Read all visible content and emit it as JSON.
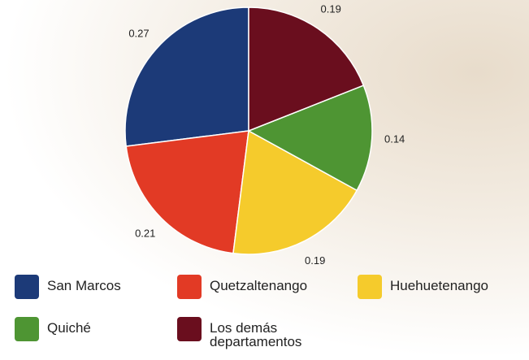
{
  "chart_data": {
    "type": "pie",
    "series": [
      {
        "name": "San Marcos",
        "color": "#1c3a78",
        "values": [
          0.27
        ]
      },
      {
        "name": "Quetzaltenango",
        "color": "#e23a25",
        "values": [
          0.21
        ]
      },
      {
        "name": "Huehuetenango",
        "color": "#f5cb2c",
        "values": [
          0.19
        ]
      },
      {
        "name": "Quiché",
        "color": "#4e9533",
        "values": [
          0.14
        ]
      },
      {
        "name": "Los demás departamentos",
        "color": "#6a0e1e",
        "values": [
          0.19
        ]
      }
    ],
    "direction": "counterclockwise"
  }
}
